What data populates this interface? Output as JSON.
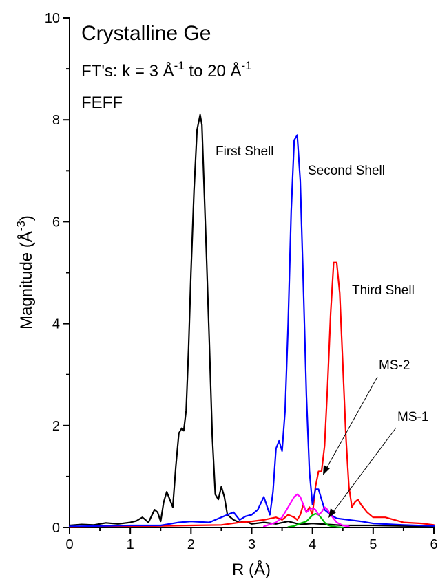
{
  "chart_data": {
    "type": "line",
    "title": "Crystalline Ge",
    "subtitle": {
      "prefix": "FT's: k = 3 Å",
      "exp1": "-1",
      "middle": " to 20 Å",
      "exp2": "-1"
    },
    "note": "FEFF",
    "xlabel": "R (Å)",
    "ylabel": {
      "base": "Magnitude (Å",
      "exp": "-3",
      "close": ")"
    },
    "xlim": [
      0,
      6
    ],
    "ylim": [
      0,
      10
    ],
    "xticks": [
      "0",
      "1",
      "2",
      "3",
      "4",
      "5",
      "6"
    ],
    "yticks": [
      "0",
      "2",
      "4",
      "6",
      "8",
      "10"
    ],
    "grid": false,
    "colors": {
      "first": "#000000",
      "second": "#0000ff",
      "third": "#ff0000",
      "ms2": "#ff00ff",
      "ms1": "#00bb00"
    },
    "series": [
      {
        "key": "first",
        "x": [
          0,
          0.2,
          0.4,
          0.6,
          0.8,
          1.0,
          1.1,
          1.2,
          1.3,
          1.4,
          1.45,
          1.5,
          1.55,
          1.6,
          1.65,
          1.7,
          1.75,
          1.8,
          1.85,
          1.88,
          1.92,
          1.96,
          2.0,
          2.05,
          2.1,
          2.15,
          2.18,
          2.2,
          2.25,
          2.3,
          2.35,
          2.4,
          2.45,
          2.5,
          2.55,
          2.6,
          2.7,
          2.8,
          2.9,
          3.0,
          3.2,
          3.4,
          3.6,
          3.8,
          4.0,
          4.5,
          5.0,
          5.5,
          6.0
        ],
        "y": [
          0.04,
          0.06,
          0.05,
          0.09,
          0.07,
          0.1,
          0.13,
          0.2,
          0.1,
          0.35,
          0.3,
          0.12,
          0.5,
          0.7,
          0.55,
          0.4,
          1.2,
          1.85,
          1.95,
          1.9,
          2.3,
          3.5,
          5.0,
          6.6,
          7.8,
          8.1,
          7.9,
          7.2,
          5.5,
          3.7,
          1.8,
          0.65,
          0.55,
          0.8,
          0.6,
          0.25,
          0.15,
          0.1,
          0.12,
          0.07,
          0.1,
          0.07,
          0.12,
          0.06,
          0.08,
          0.04,
          0.04,
          0.03,
          0.02
        ]
      },
      {
        "key": "second",
        "x": [
          0,
          0.5,
          1.0,
          1.5,
          1.8,
          2.0,
          2.3,
          2.5,
          2.7,
          2.8,
          2.9,
          3.0,
          3.1,
          3.2,
          3.3,
          3.35,
          3.4,
          3.45,
          3.5,
          3.55,
          3.6,
          3.65,
          3.7,
          3.75,
          3.8,
          3.85,
          3.9,
          3.95,
          4.0,
          4.05,
          4.1,
          4.15,
          4.2,
          4.3,
          4.4,
          4.6,
          4.8,
          5.0,
          5.5,
          6.0
        ],
        "y": [
          0.02,
          0.03,
          0.04,
          0.04,
          0.1,
          0.12,
          0.1,
          0.2,
          0.3,
          0.15,
          0.22,
          0.25,
          0.35,
          0.6,
          0.25,
          0.7,
          1.55,
          1.7,
          1.5,
          2.3,
          4.0,
          6.2,
          7.6,
          7.7,
          6.8,
          4.8,
          2.6,
          1.1,
          0.45,
          0.75,
          0.75,
          0.55,
          0.35,
          0.25,
          0.18,
          0.15,
          0.12,
          0.08,
          0.05,
          0.03
        ]
      },
      {
        "key": "third",
        "x": [
          0,
          1.0,
          2.0,
          2.5,
          2.8,
          3.0,
          3.2,
          3.4,
          3.5,
          3.6,
          3.7,
          3.75,
          3.8,
          3.85,
          3.9,
          3.95,
          4.0,
          4.05,
          4.1,
          4.15,
          4.2,
          4.25,
          4.3,
          4.35,
          4.4,
          4.45,
          4.5,
          4.55,
          4.6,
          4.65,
          4.7,
          4.75,
          4.8,
          4.9,
          5.0,
          5.2,
          5.5,
          5.8,
          6.0
        ],
        "y": [
          0.01,
          0.02,
          0.04,
          0.05,
          0.1,
          0.12,
          0.15,
          0.2,
          0.15,
          0.25,
          0.2,
          0.15,
          0.25,
          0.45,
          0.3,
          0.4,
          0.25,
          0.8,
          1.1,
          1.1,
          1.6,
          2.8,
          4.2,
          5.2,
          5.2,
          4.6,
          3.2,
          1.8,
          0.8,
          0.4,
          0.5,
          0.55,
          0.45,
          0.3,
          0.2,
          0.2,
          0.1,
          0.08,
          0.05
        ]
      },
      {
        "key": "ms2",
        "x": [
          3.2,
          3.4,
          3.5,
          3.6,
          3.65,
          3.7,
          3.75,
          3.8,
          3.85,
          3.9,
          3.95,
          4.0,
          4.05,
          4.1,
          4.15,
          4.2,
          4.25,
          4.3,
          4.4,
          4.5,
          4.6
        ],
        "y": [
          0.02,
          0.1,
          0.2,
          0.4,
          0.5,
          0.6,
          0.65,
          0.6,
          0.45,
          0.3,
          0.35,
          0.38,
          0.35,
          0.25,
          0.3,
          0.4,
          0.35,
          0.25,
          0.1,
          0.04,
          0.02
        ]
      },
      {
        "key": "ms1",
        "x": [
          3.6,
          3.7,
          3.8,
          3.9,
          3.95,
          4.0,
          4.05,
          4.1,
          4.15,
          4.2,
          4.25,
          4.3,
          4.4,
          4.5
        ],
        "y": [
          0.01,
          0.03,
          0.08,
          0.12,
          0.18,
          0.24,
          0.27,
          0.25,
          0.18,
          0.1,
          0.05,
          0.03,
          0.01,
          0.0
        ]
      }
    ],
    "annotations": {
      "first_shell": "First Shell",
      "second_shell": "Second Shell",
      "third_shell": "Third Shell",
      "ms2": "MS-2",
      "ms1": "MS-1"
    }
  }
}
